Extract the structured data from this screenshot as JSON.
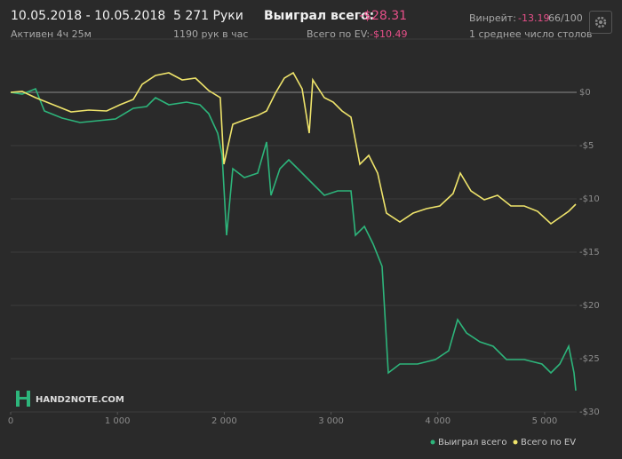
{
  "header": {
    "date_range": "10.05.2018 - 10.05.2018",
    "active": "Активен 4ч 25м",
    "hands": "5 271 Руки",
    "hands_per_hour": "1190 рук в час",
    "won_label": "Выиграл всего:",
    "won_value": "-$28.31",
    "ev_label": "Всего по EV:",
    "ev_value": "-$10.49",
    "winrate_label": "Винрейт:",
    "winrate_value": "-13.19",
    "winrate_unit": "66/100",
    "tables": "1 среднее число столов"
  },
  "chart_data": {
    "type": "line",
    "watermark": "HAND2NOTE.COM",
    "xlim": [
      0,
      5300
    ],
    "ylim": [
      -30,
      5
    ],
    "xticks": [
      0,
      {
        "value": 1000,
        "label": "1 000"
      },
      {
        "value": 2000,
        "label": "2 000"
      },
      {
        "value": 3000,
        "label": "3 000"
      },
      {
        "value": 4000,
        "label": "4 000"
      },
      {
        "value": 5000,
        "label": "5 000"
      }
    ],
    "yticks": [
      {
        "value": 0,
        "label": "$0"
      },
      {
        "value": -5,
        "label": "-$5"
      },
      {
        "value": -10,
        "label": "-$10"
      },
      {
        "value": -15,
        "label": "-$15"
      },
      {
        "value": -20,
        "label": "-$20"
      },
      {
        "value": -25,
        "label": "-$25"
      },
      {
        "value": -30,
        "label": "-$30"
      }
    ],
    "grid": true,
    "series": [
      {
        "name": "Выиграл всего",
        "color": "#2db57b",
        "x": [
          0,
          108,
          233,
          316,
          482,
          649,
          815,
          982,
          1148,
          1273,
          1356,
          1481,
          1647,
          1772,
          1855,
          1939,
          1980,
          2022,
          2080,
          2188,
          2313,
          2396,
          2438,
          2521,
          2604,
          2688,
          2771,
          2854,
          2937,
          3062,
          3187,
          3228,
          3312,
          3395,
          3478,
          3536,
          3644,
          3810,
          3977,
          4102,
          4185,
          4268,
          4393,
          4518,
          4643,
          4809,
          4975,
          5059,
          5142,
          5225,
          5275,
          5292
        ],
        "values": [
          0,
          -0.17,
          0.33,
          -1.75,
          -2.42,
          -2.83,
          -2.67,
          -2.5,
          -1.5,
          -1.33,
          -0.5,
          -1.17,
          -0.92,
          -1.17,
          -2,
          -3.83,
          -5.92,
          -13.42,
          -7.17,
          -8,
          -7.58,
          -4.67,
          -9.67,
          -7.17,
          -6.33,
          -7.17,
          -8,
          -8.83,
          -9.67,
          -9.25,
          -9.25,
          -13.42,
          -12.58,
          -14.25,
          -16.33,
          -26.33,
          -25.5,
          -25.5,
          -25.08,
          -24.25,
          -21.33,
          -22.58,
          -23.42,
          -23.83,
          -25.08,
          -25.08,
          -25.5,
          -26.33,
          -25.5,
          -23.83,
          -26.33,
          -28
        ]
      },
      {
        "name": "Всего по EV",
        "color": "#efe46b",
        "x": [
          0,
          108,
          233,
          399,
          566,
          732,
          899,
          1023,
          1148,
          1231,
          1356,
          1481,
          1606,
          1731,
          1855,
          1963,
          1997,
          2080,
          2188,
          2313,
          2396,
          2479,
          2563,
          2646,
          2729,
          2796,
          2829,
          2937,
          3020,
          3103,
          3187,
          3270,
          3353,
          3436,
          3519,
          3644,
          3769,
          3894,
          4019,
          4143,
          4210,
          4310,
          4435,
          4559,
          4684,
          4809,
          4934,
          5059,
          5142,
          5225,
          5292
        ],
        "values": [
          0,
          0.08,
          -0.5,
          -1.17,
          -1.83,
          -1.67,
          -1.75,
          -1.17,
          -0.67,
          0.75,
          1.58,
          1.83,
          1.17,
          1.33,
          0.17,
          -0.5,
          -6.75,
          -3,
          -2.58,
          -2.17,
          -1.75,
          -0.08,
          1.33,
          1.83,
          0.33,
          -3.83,
          1.17,
          -0.5,
          -0.92,
          -1.75,
          -2.33,
          -6.75,
          -5.92,
          -7.58,
          -11.33,
          -12.17,
          -11.33,
          -10.92,
          -10.67,
          -9.5,
          -7.58,
          -9.25,
          -10.08,
          -9.67,
          -10.67,
          -10.67,
          -11.17,
          -12.33,
          -11.75,
          -11.17,
          -10.5
        ]
      }
    ]
  }
}
